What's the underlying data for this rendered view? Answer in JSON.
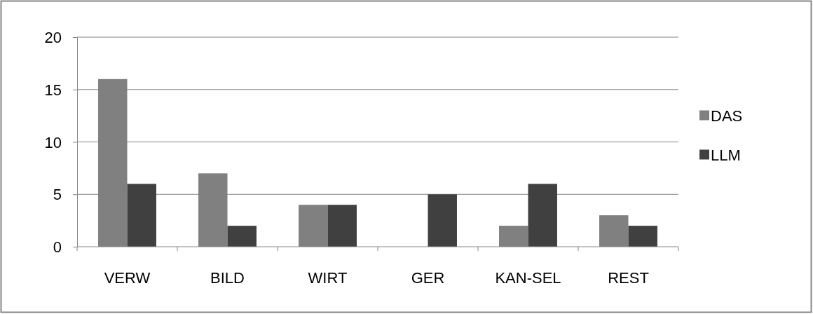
{
  "chart_data": {
    "type": "bar",
    "categories": [
      "VERW",
      "BILD",
      "WIRT",
      "GER",
      "KAN-SEL",
      "REST"
    ],
    "series": [
      {
        "name": "DAS",
        "color": "#808080",
        "values": [
          16,
          7,
          4,
          0,
          2,
          3
        ]
      },
      {
        "name": "LLM",
        "color": "#404040",
        "values": [
          6,
          2,
          4,
          5,
          6,
          2
        ]
      }
    ],
    "ylim": [
      0,
      20
    ],
    "yticks": [
      0,
      5,
      10,
      15,
      20
    ],
    "grid": "y",
    "legend": "right"
  }
}
